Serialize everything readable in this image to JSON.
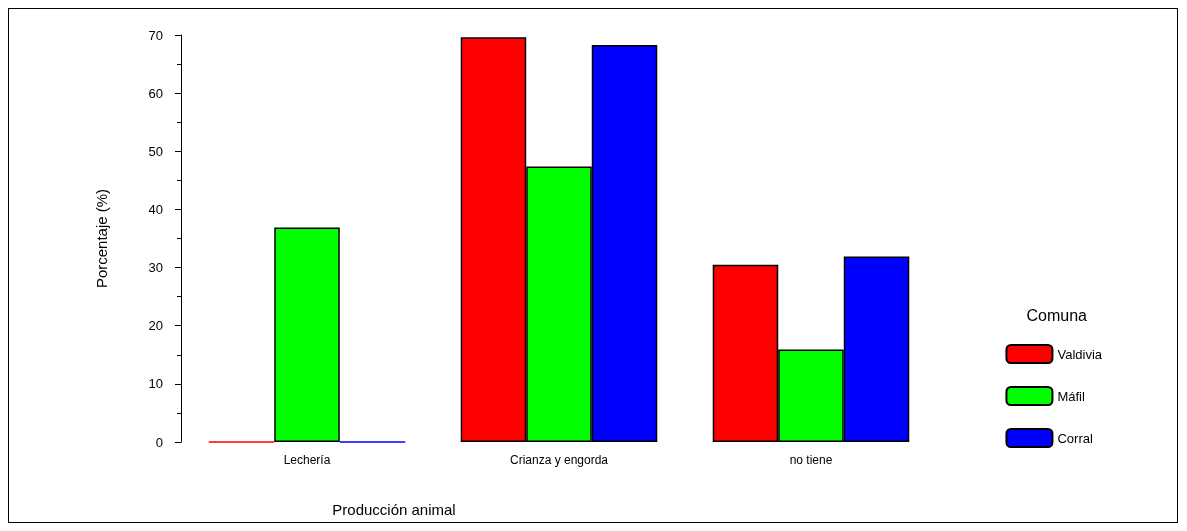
{
  "chart_data": {
    "type": "bar",
    "xlabel": "Producción animal",
    "ylabel": "Porcentaje (%)",
    "legend_title": "Comuna",
    "legend": "right",
    "grid": false,
    "categories": [
      "Lechería",
      "Crianza y engorda",
      "no tiene"
    ],
    "ylim": [
      0,
      70
    ],
    "yticks": [
      0,
      10,
      20,
      30,
      40,
      50,
      60,
      70
    ],
    "series": [
      {
        "name": "Valdivia",
        "color": "#ff0000",
        "values": [
          0,
          69.6,
          30.5
        ]
      },
      {
        "name": "Máfil",
        "color": "#00ff00",
        "values": [
          36.9,
          47.4,
          15.9
        ]
      },
      {
        "name": "Corral",
        "color": "#0000ff",
        "values": [
          0,
          68.3,
          31.9
        ]
      }
    ]
  }
}
